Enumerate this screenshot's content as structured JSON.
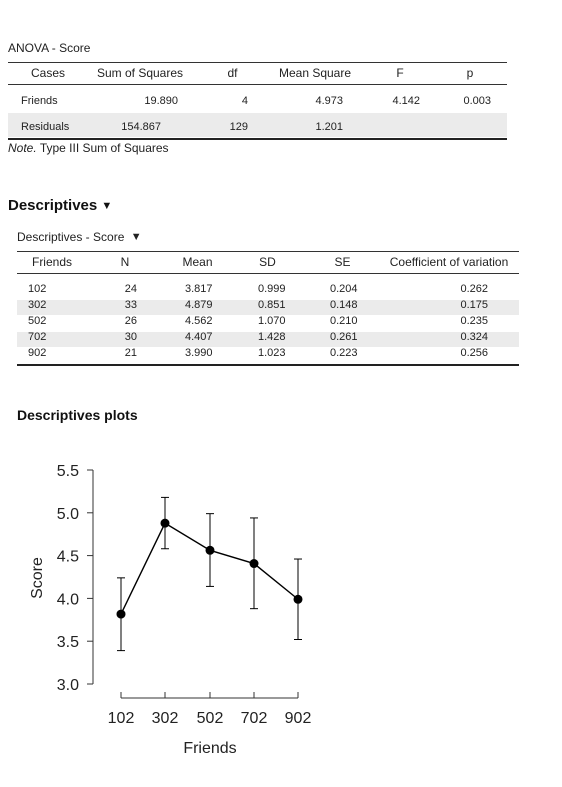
{
  "anova": {
    "title": "ANOVA - Score",
    "columns": [
      "Cases",
      "Sum of Squares",
      "df",
      "Mean Square",
      "F",
      "p"
    ],
    "rows": [
      [
        "Friends",
        "19.890",
        "4",
        "4.973",
        "4.142",
        "0.003"
      ],
      [
        "Residuals",
        "154.867",
        "129",
        "1.201",
        "",
        ""
      ]
    ],
    "note_prefix": "Note.",
    "note_text": "Type III Sum of Squares"
  },
  "descriptives": {
    "heading": "Descriptives",
    "heading_caret": "▼",
    "table_title": "Descriptives - Score",
    "table_caret": "▼",
    "columns": [
      "Friends",
      "N",
      "Mean",
      "SD",
      "SE",
      "Coefficient of variation"
    ],
    "rows": [
      [
        "102",
        "24",
        "3.817",
        "0.999",
        "0.204",
        "0.262"
      ],
      [
        "302",
        "33",
        "4.879",
        "0.851",
        "0.148",
        "0.175"
      ],
      [
        "502",
        "26",
        "4.562",
        "1.070",
        "0.210",
        "0.235"
      ],
      [
        "702",
        "30",
        "4.407",
        "1.428",
        "0.261",
        "0.324"
      ],
      [
        "902",
        "21",
        "3.990",
        "1.023",
        "0.223",
        "0.256"
      ]
    ]
  },
  "plots": {
    "heading": "Descriptives plots"
  },
  "chart_data": {
    "type": "line",
    "title": "",
    "xlabel": "Friends",
    "ylabel": "Score",
    "categories": [
      "102",
      "302",
      "502",
      "702",
      "902"
    ],
    "values": [
      3.817,
      4.879,
      4.562,
      4.407,
      3.99
    ],
    "error_lower": [
      3.39,
      4.58,
      4.14,
      3.88,
      3.52
    ],
    "error_upper": [
      4.24,
      5.18,
      4.99,
      4.94,
      4.46
    ],
    "ylim": [
      3.0,
      5.5
    ],
    "yticks": [
      "3.0",
      "3.5",
      "4.0",
      "4.5",
      "5.0",
      "5.5"
    ],
    "grid": false,
    "marker_color": "#000000"
  }
}
